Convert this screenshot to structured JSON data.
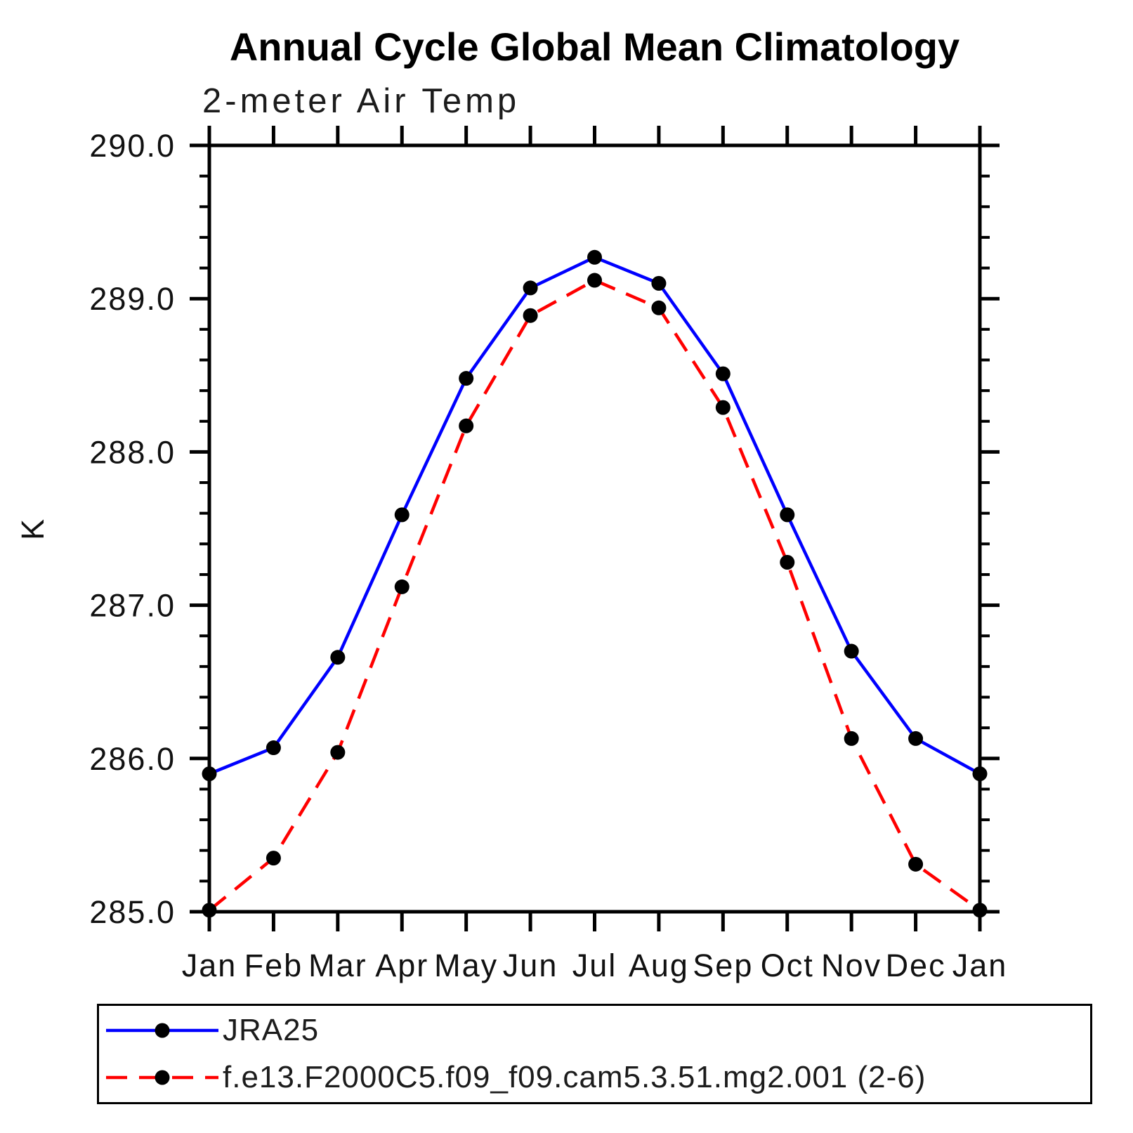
{
  "title": "Annual Cycle Global Mean Climatology",
  "subtitle": "2-meter Air Temp",
  "chart_data": {
    "type": "line",
    "title": "Annual Cycle Global Mean Climatology",
    "subtitle": "2-meter Air Temp",
    "xlabel": "",
    "ylabel": "K",
    "categories": [
      "Jan",
      "Feb",
      "Mar",
      "Apr",
      "May",
      "Jun",
      "Jul",
      "Aug",
      "Sep",
      "Oct",
      "Nov",
      "Dec",
      "Jan"
    ],
    "ylim": [
      285.0,
      290.0
    ],
    "ytick_major_step": 1.0,
    "ytick_minor_step": 0.2,
    "ytick_labels": [
      "285.0",
      "286.0",
      "287.0",
      "288.0",
      "289.0",
      "290.0"
    ],
    "grid": false,
    "legend_position": "bottom-left-box",
    "frame_color": "#000000",
    "marker_color": "#000000",
    "series": [
      {
        "name": "JRA25",
        "color": "#0000ff",
        "style": "solid",
        "marker": "circle",
        "values": [
          285.9,
          286.07,
          286.66,
          287.59,
          288.48,
          289.07,
          289.27,
          289.1,
          288.51,
          287.59,
          286.7,
          286.13,
          285.9
        ]
      },
      {
        "name": "f.e13.F2000C5.f09_f09.cam5.3.51.mg2.001 (2-6)",
        "color": "#ff0000",
        "style": "dashed",
        "marker": "circle",
        "values": [
          285.01,
          285.35,
          286.04,
          287.12,
          288.17,
          288.89,
          289.12,
          288.94,
          288.29,
          287.28,
          286.13,
          285.31,
          285.01
        ]
      }
    ]
  }
}
